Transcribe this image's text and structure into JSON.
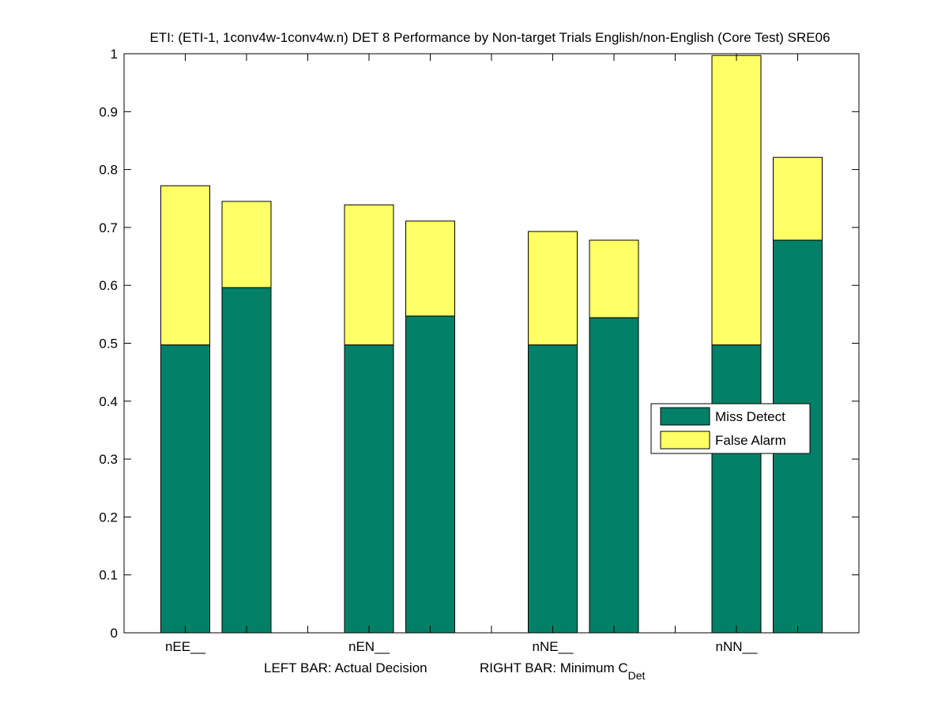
{
  "chart_data": {
    "type": "bar",
    "stacked": true,
    "title": "ETI: (ETI-1, 1conv4w-1conv4w.n) DET 8 Performance by Non-target Trials English/non-English (Core Test) SRE06",
    "xlabel_parts": {
      "left": "LEFT BAR: Actual Decision",
      "right_main": "RIGHT BAR: Minimum C",
      "right_subscript": "Det"
    },
    "ylabel": "",
    "ylim": [
      0,
      1
    ],
    "yticks": [
      "0",
      "0.1",
      "0.2",
      "0.3",
      "0.4",
      "0.5",
      "0.6",
      "0.7",
      "0.8",
      "0.9",
      "1"
    ],
    "ytick_values": [
      0,
      0.1,
      0.2,
      0.3,
      0.4,
      0.5,
      0.6,
      0.7,
      0.8,
      0.9,
      1
    ],
    "categories": [
      "nEE__",
      "nEN__",
      "nNE__",
      "nNN__"
    ],
    "bar_roles": [
      "Actual Decision",
      "Minimum CDet"
    ],
    "series": [
      {
        "name": "Miss Detect",
        "color": "#008066",
        "actual_decision": [
          0.497,
          0.497,
          0.497,
          0.497
        ],
        "minimum_cdet": [
          0.596,
          0.547,
          0.544,
          0.678
        ]
      },
      {
        "name": "False Alarm",
        "color": "#FFFF66",
        "actual_decision": [
          0.275,
          0.242,
          0.196,
          0.5
        ],
        "minimum_cdet": [
          0.149,
          0.164,
          0.134,
          0.143
        ]
      }
    ],
    "totals": {
      "actual_decision": [
        0.772,
        0.739,
        0.693,
        0.997
      ],
      "minimum_cdet": [
        0.745,
        0.711,
        0.678,
        0.821
      ]
    },
    "grid": false,
    "legend": {
      "placement": "center-right",
      "entries": [
        "Miss Detect",
        "False Alarm"
      ]
    }
  }
}
